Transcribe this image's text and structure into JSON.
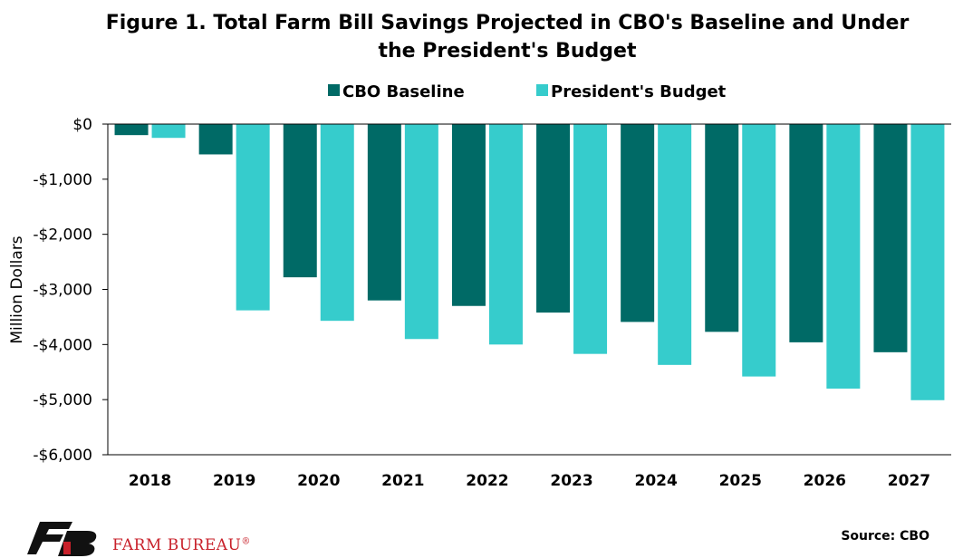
{
  "chart_data": {
    "type": "bar",
    "title_lines": [
      "Figure 1. Total Farm Bill Savings Projected in CBO's Baseline and Under",
      "the President's Budget"
    ],
    "categories": [
      "2018",
      "2019",
      "2020",
      "2021",
      "2022",
      "2023",
      "2024",
      "2025",
      "2026",
      "2027"
    ],
    "series": [
      {
        "name": "CBO Baseline",
        "color": "#006a66",
        "values": [
          -200,
          -550,
          -2780,
          -3200,
          -3300,
          -3420,
          -3590,
          -3770,
          -3960,
          -4140
        ]
      },
      {
        "name": "President's Budget",
        "color": "#36cccc",
        "values": [
          -250,
          -3380,
          -3570,
          -3900,
          -4000,
          -4170,
          -4370,
          -4580,
          -4800,
          -5010
        ]
      }
    ],
    "ylabel": "Million Dollars",
    "ylim": [
      -6000,
      0
    ],
    "yticks": [
      0,
      -1000,
      -2000,
      -3000,
      -4000,
      -5000,
      -6000
    ],
    "ytick_labels": [
      "$0",
      "-$1,000",
      "-$2,000",
      "-$3,000",
      "-$4,000",
      "-$5,000",
      "-$6,000"
    ],
    "legend_position": "top",
    "grid": false
  },
  "source": "Source: CBO",
  "logo": {
    "text": "FARM BUREAU",
    "mark": "®",
    "color": "#c8202a"
  }
}
